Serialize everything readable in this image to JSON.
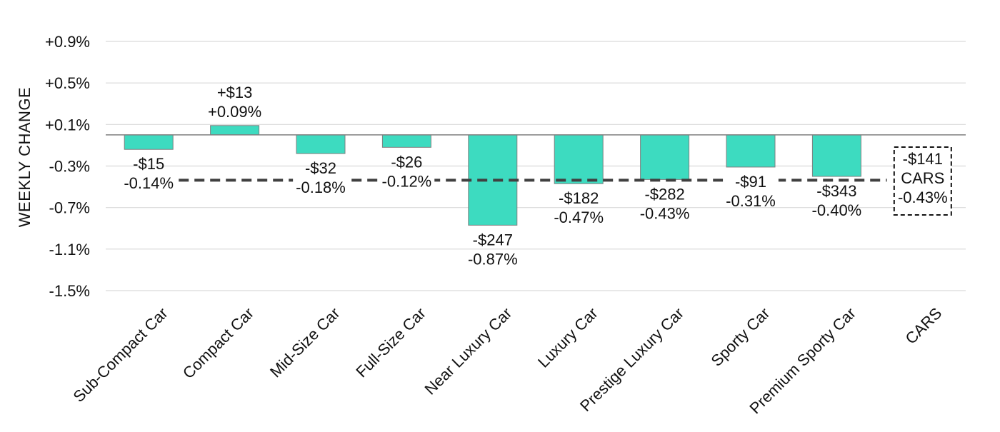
{
  "chart_data": {
    "type": "bar",
    "ylabel": "WEEKLY CHANGE",
    "xlabel": "",
    "title": "",
    "ylim": [
      -1.5,
      0.9
    ],
    "yticks": [
      "+0.9%",
      "+0.5%",
      "+0.1%",
      "-0.3%",
      "-0.7%",
      "-1.1%",
      "-1.5%"
    ],
    "ytick_values": [
      0.9,
      0.5,
      0.1,
      -0.3,
      -0.7,
      -1.1,
      -1.5
    ],
    "categories": [
      "Sub-Compact Car",
      "Compact Car",
      "Mid-Size Car",
      "Full-Size Car",
      "Near Luxury Car",
      "Luxury Car",
      "Prestige Luxury Car",
      "Sporty Car",
      "Premium Sporty Car",
      "CARS"
    ],
    "values": [
      -0.14,
      0.09,
      -0.18,
      -0.12,
      -0.87,
      -0.47,
      -0.43,
      -0.31,
      -0.4,
      null
    ],
    "dollar_labels": [
      "-$15",
      "+$13",
      "-$32",
      "-$26",
      "-$247",
      "-$182",
      "-$282",
      "-$91",
      "-$343",
      "-$141"
    ],
    "percent_labels": [
      "-0.14%",
      "+0.09%",
      "-0.18%",
      "-0.12%",
      "-0.87%",
      "-0.47%",
      "-0.43%",
      "-0.31%",
      "-0.40%",
      "-0.43%"
    ],
    "overall": {
      "label": "CARS",
      "value": -0.43,
      "dollar": "-$141",
      "percent": "-0.43%"
    },
    "grid": true,
    "colors": {
      "bar": "#3ddbc0",
      "bar_edge": "#7f7f7f",
      "reference_line": "#404040",
      "grid": "#d9d9d9",
      "axis": "#7f7f7f"
    }
  }
}
